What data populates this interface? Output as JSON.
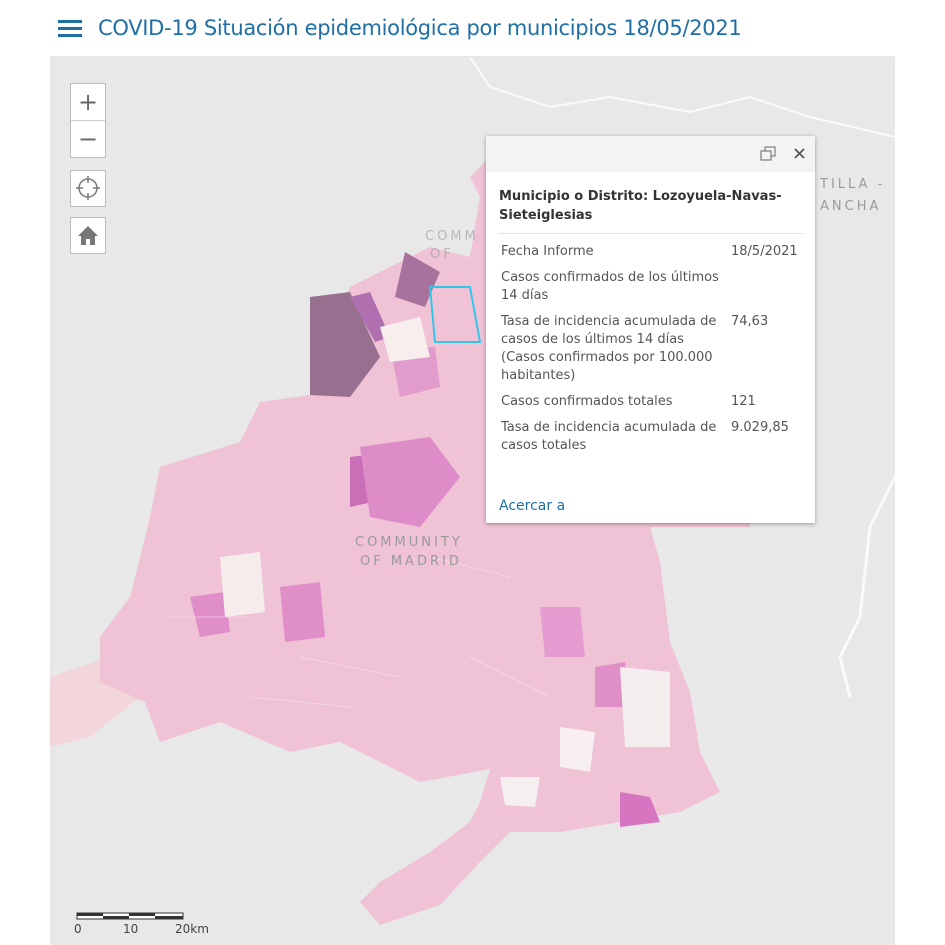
{
  "header": {
    "title": "COVID-19 Situación epidemiológica por municipios 18/05/2021"
  },
  "map": {
    "controls": {
      "zoom_in": "+",
      "zoom_out": "−"
    },
    "labels": {
      "faint_1": "COMM",
      "faint_2": "OF",
      "region_1": "COMMUNITY",
      "region_2": "OF MADRID",
      "east_1": "TILLA -",
      "east_2": "ANCHA"
    },
    "scale": [
      "0",
      "10",
      "20km"
    ]
  },
  "popup": {
    "title": "Municipio o Distrito: Lozoyuela-Navas-Sieteiglesias",
    "rows": [
      {
        "label": "Fecha Informe",
        "value": "18/5/2021"
      },
      {
        "label": "Casos confirmados de los últimos 14 días"
      },
      {
        "label": "Tasa de incidencia acumulada de casos de los últimos 14 días (Casos confirmados por 100.000 habitantes)",
        "value": "74,63"
      },
      {
        "label": "Casos confirmados totales",
        "value": "121"
      },
      {
        "label": "Tasa de incidencia acumulada de casos totales",
        "value": "9.029,85"
      }
    ],
    "action": "Acercar a"
  }
}
